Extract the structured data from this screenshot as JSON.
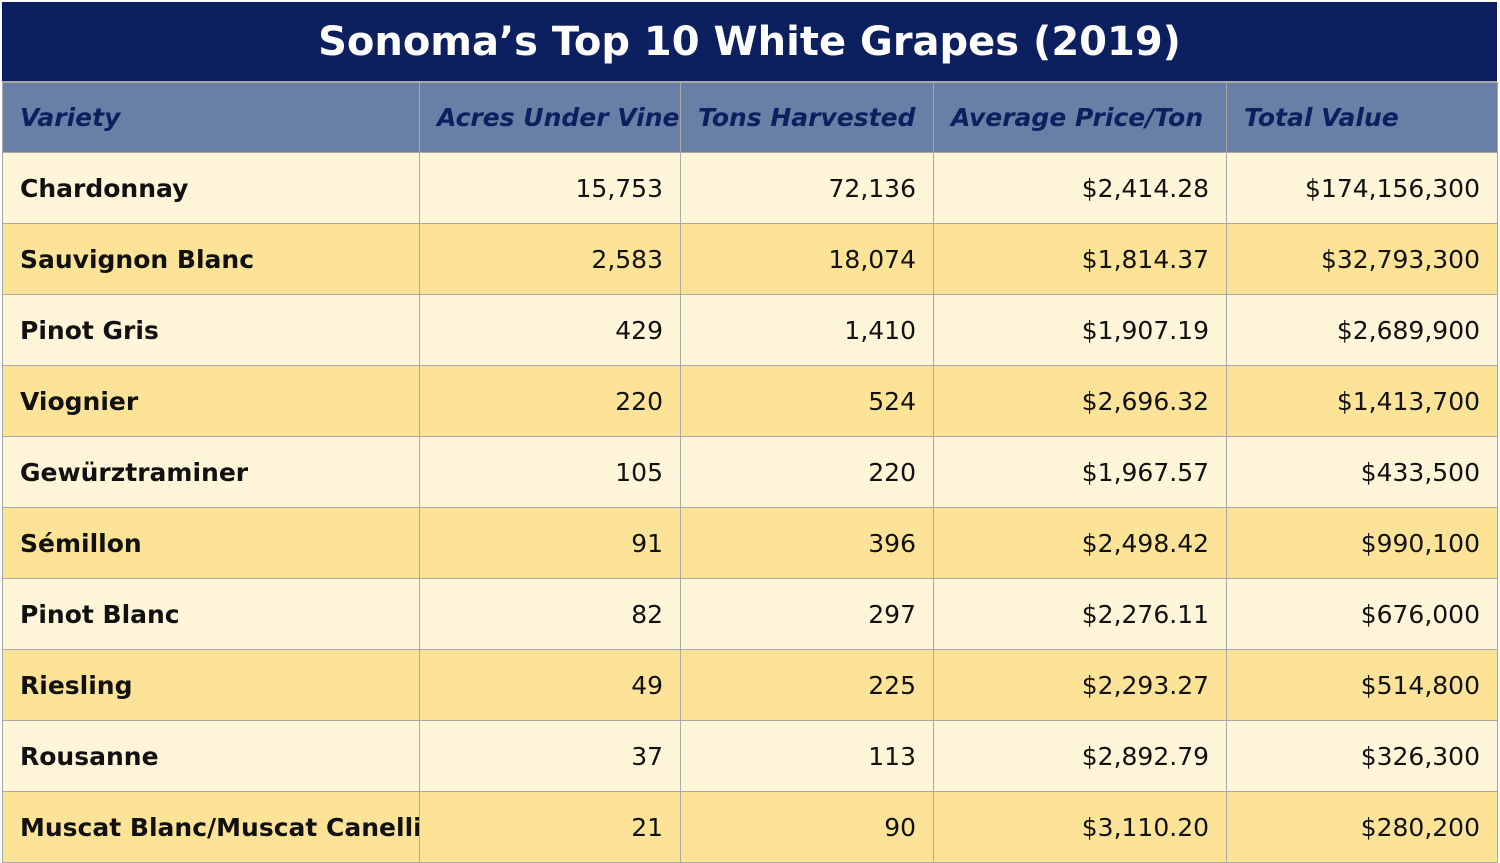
{
  "chart_data": {
    "type": "table",
    "title": "Sonoma’s Top 10 White Grapes (2019)",
    "columns": [
      "Variety",
      "Acres Under Vine",
      "Tons Harvested",
      "Average Price/Ton",
      "Total Value"
    ],
    "rows": [
      [
        "Chardonnay",
        "15,753",
        "72,136",
        "$2,414.28",
        "$174,156,300"
      ],
      [
        "Sauvignon Blanc",
        "2,583",
        "18,074",
        "$1,814.37",
        "$32,793,300"
      ],
      [
        "Pinot Gris",
        "429",
        "1,410",
        "$1,907.19",
        "$2,689,900"
      ],
      [
        "Viognier",
        "220",
        "524",
        "$2,696.32",
        "$1,413,700"
      ],
      [
        "Gewürztraminer",
        "105",
        "220",
        "$1,967.57",
        "$433,500"
      ],
      [
        "Sémillon",
        "91",
        "396",
        "$2,498.42",
        "$990,100"
      ],
      [
        "Pinot Blanc",
        "82",
        "297",
        "$2,276.11",
        "$676,000"
      ],
      [
        "Riesling",
        "49",
        "225",
        "$2,293.27",
        "$514,800"
      ],
      [
        "Rousanne",
        "37",
        "113",
        "$2,892.79",
        "$326,300"
      ],
      [
        "Muscat Blanc/Muscat Canelli",
        "21",
        "90",
        "$3,110.20",
        "$280,200"
      ]
    ]
  },
  "colors": {
    "title_background": "#0c1f5e",
    "header_background": "#6a7fa6",
    "header_text": "#0c1f5e",
    "row_light": "#fff5d8",
    "row_dark": "#fde397"
  }
}
